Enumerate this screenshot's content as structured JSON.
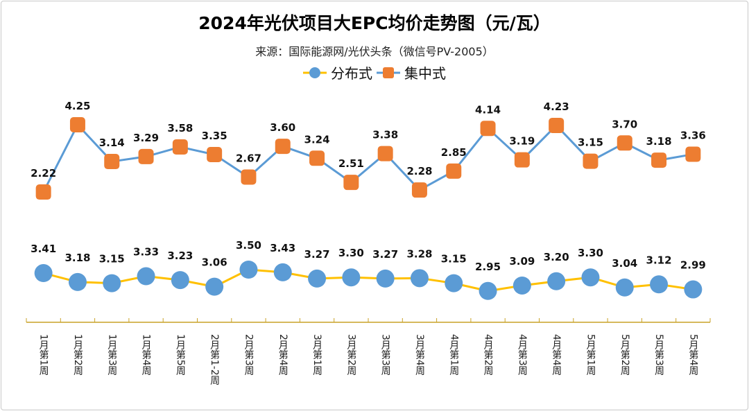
{
  "chart_data": {
    "type": "line",
    "title": "2024年光伏项目大EPC均价走势图（元/瓦）",
    "subtitle": "来源：国际能源网/光伏头条（微信号PV-2005）",
    "legend_position": "top",
    "grid": false,
    "categories": [
      "1月第1周",
      "1月第2周",
      "1月第3周",
      "1月第4周",
      "1月第5周",
      "2月第1-2周",
      "2月第3周",
      "2月第4周",
      "3月第1周",
      "3月第2周",
      "3月第3周",
      "3月第4周",
      "4月第1周",
      "4月第2周",
      "4月第3周",
      "4月第4周",
      "5月第1周",
      "5月第2周",
      "5月第3周",
      "5月第4周"
    ],
    "series": [
      {
        "name": "分布式",
        "line_color": "#FFC000",
        "marker_color": "#5B9BD5",
        "marker": "circle",
        "values": [
          3.41,
          3.18,
          3.15,
          3.33,
          3.23,
          3.06,
          3.5,
          3.43,
          3.27,
          3.3,
          3.27,
          3.28,
          3.15,
          2.95,
          3.09,
          3.2,
          3.3,
          3.04,
          3.12,
          2.99
        ]
      },
      {
        "name": "集中式",
        "line_color": "#5B9BD5",
        "marker_color": "#ED7D31",
        "marker": "square",
        "values": [
          2.22,
          4.25,
          3.14,
          3.29,
          3.58,
          3.35,
          2.67,
          3.6,
          3.24,
          2.51,
          3.38,
          2.28,
          2.85,
          4.14,
          3.19,
          4.23,
          3.15,
          3.7,
          3.18,
          3.36
        ]
      }
    ],
    "axis_color": "#C9A227"
  }
}
